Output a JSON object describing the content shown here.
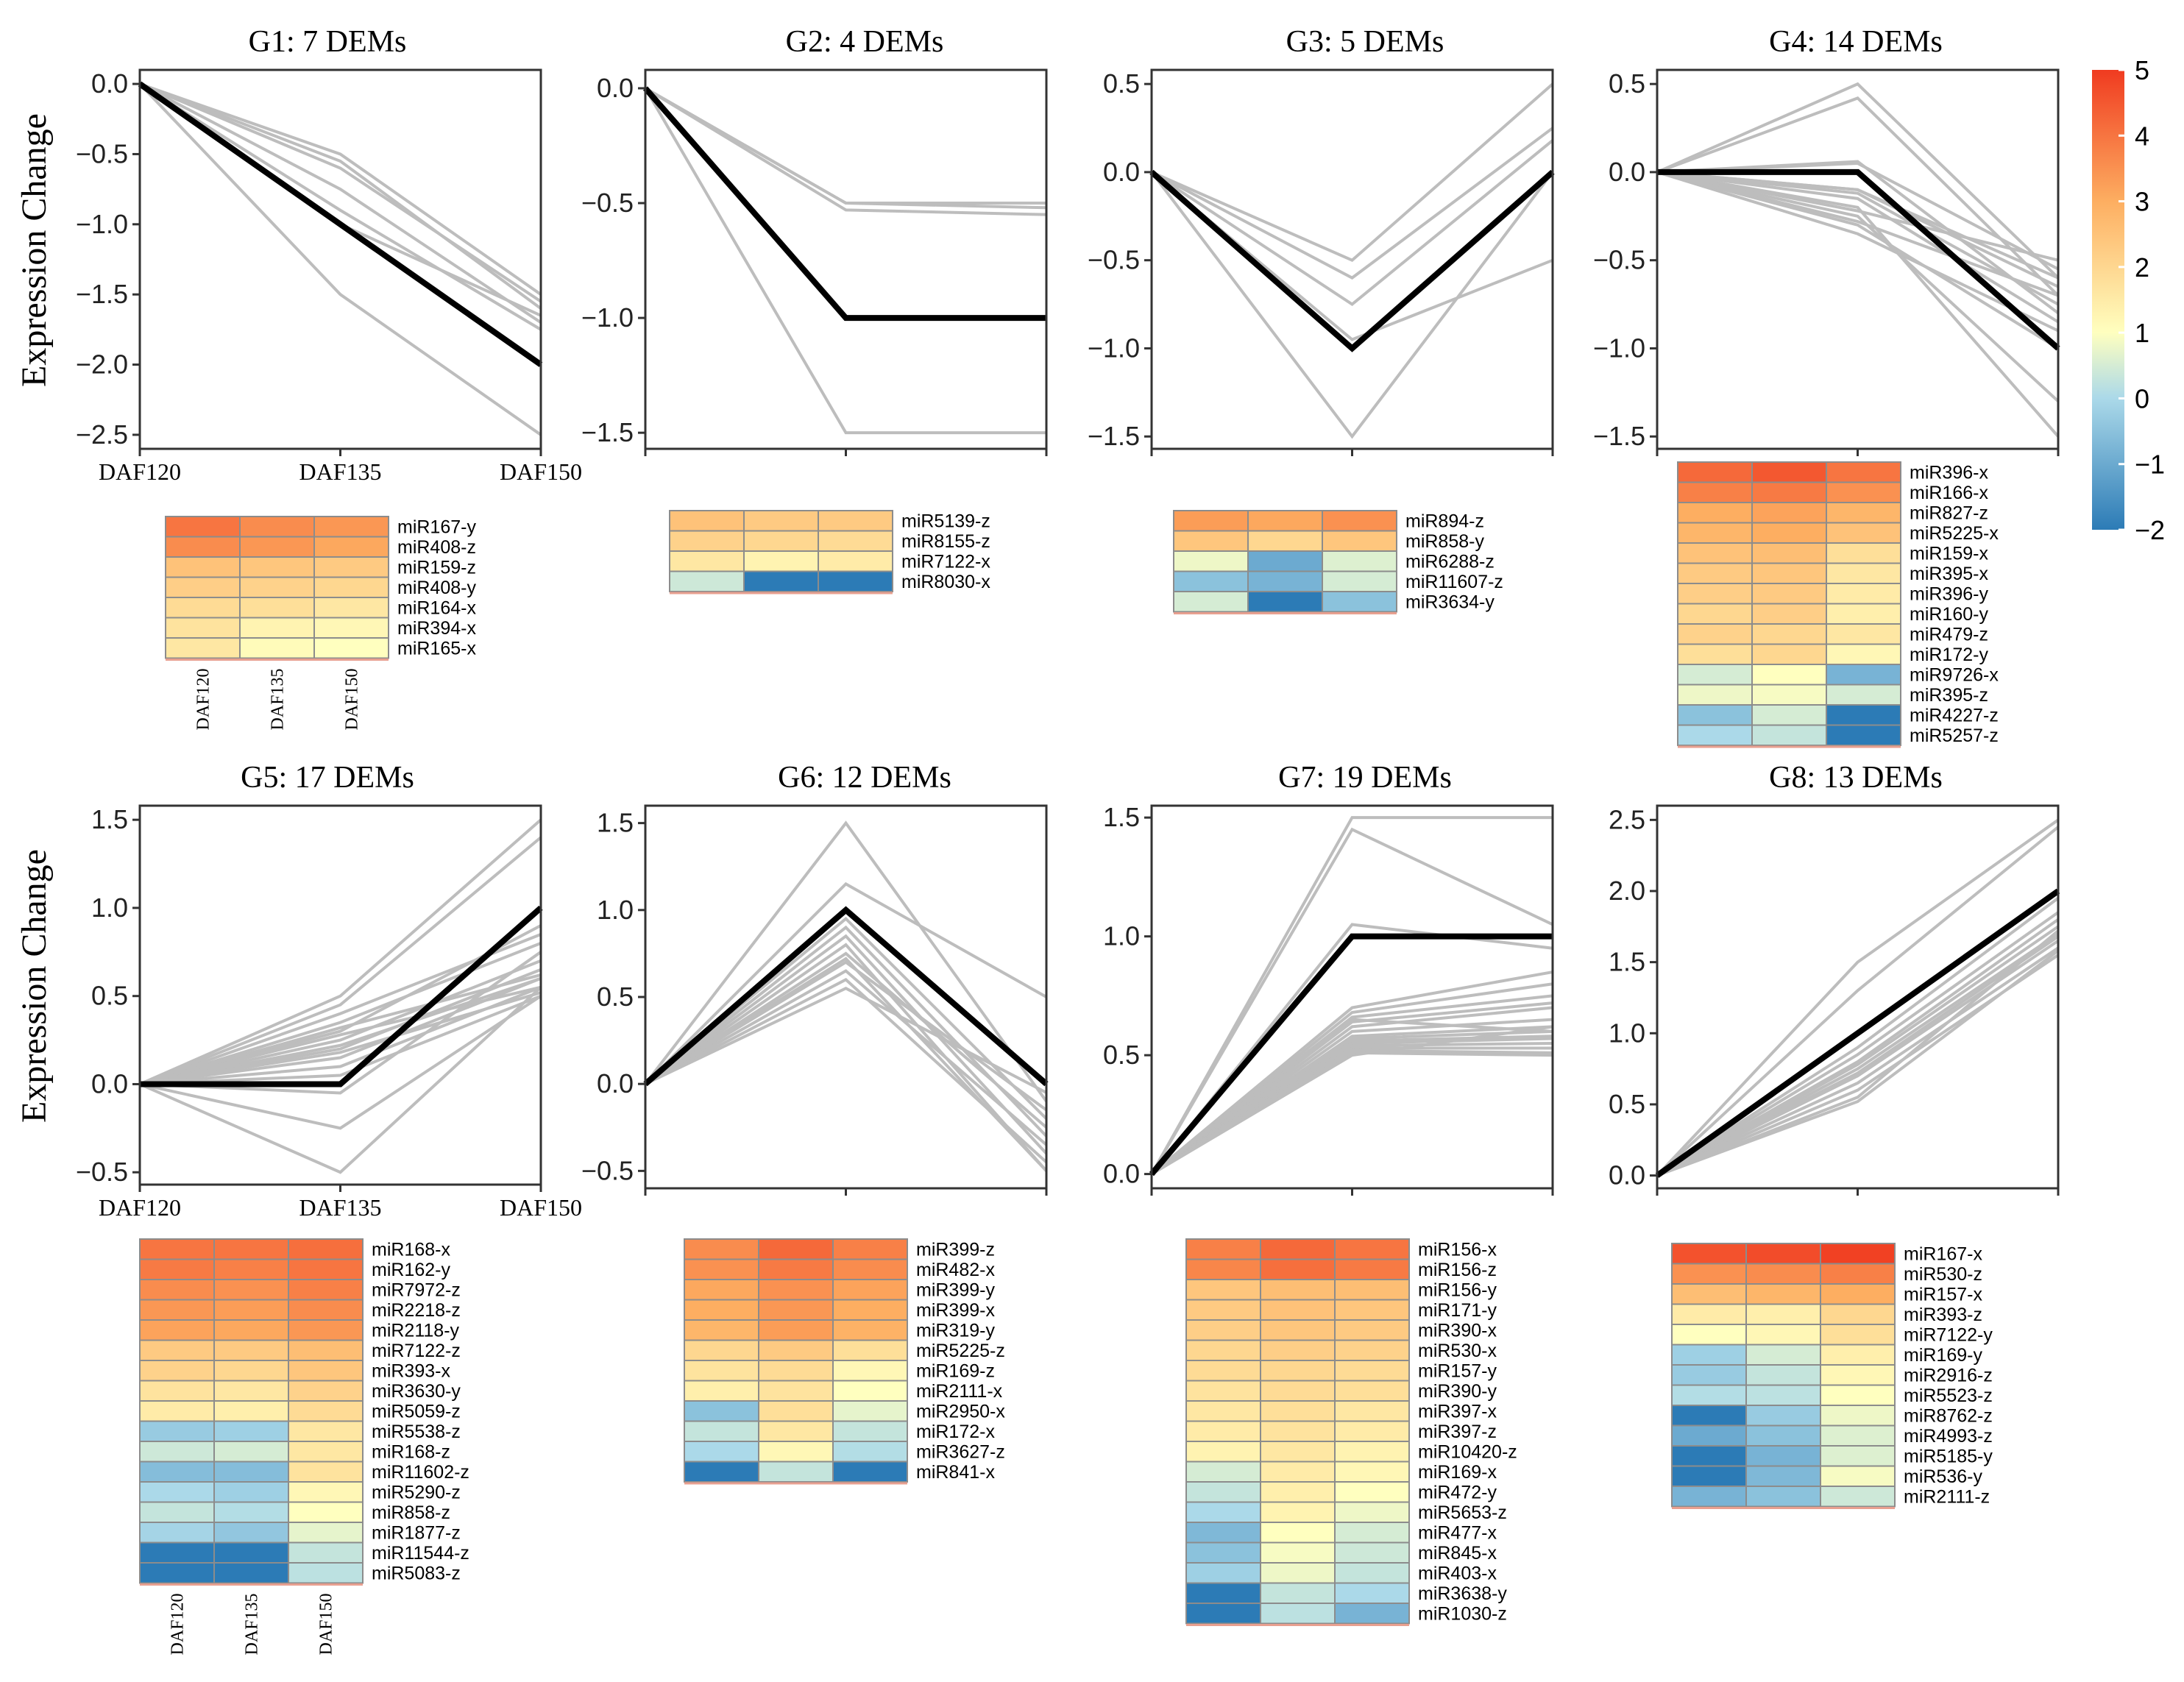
{
  "ylabel": "Expression Change",
  "colorbar": {
    "min": -2,
    "max": 5,
    "ticks": [
      5,
      4,
      3,
      2,
      1,
      0,
      -1,
      -2
    ],
    "tick_labels": [
      "5",
      "4",
      "3",
      "2",
      "1",
      "0",
      "−1",
      "−2"
    ],
    "colors": [
      "#2c7bb6",
      "#abd9e9",
      "#ffffbf",
      "#fdae61",
      "#f03b20"
    ]
  },
  "x_labels": [
    "DAF120",
    "DAF135",
    "DAF150"
  ],
  "chart_data": [
    {
      "type": "line",
      "title": "G1: 7 DEMs",
      "ylim": [
        -2.6,
        0.1
      ],
      "yticks": [
        0,
        -0.5,
        -1,
        -1.5,
        -2,
        -2.5
      ],
      "ytick_labels": [
        "0.0",
        "−0.5",
        "−1.0",
        "−1.5",
        "−2.0",
        "−2.5"
      ],
      "show_ylabel": true,
      "show_xlabels": true,
      "profile": [
        0,
        -1,
        -2
      ],
      "members": [
        [
          0,
          -0.5,
          -1.5
        ],
        [
          0,
          -0.55,
          -1.6
        ],
        [
          0,
          -0.75,
          -1.7
        ],
        [
          0,
          -0.6,
          -1.55
        ],
        [
          0,
          -1.5,
          -2.5
        ],
        [
          0,
          -0.9,
          -1.75
        ],
        [
          0,
          -1.0,
          -1.65
        ]
      ],
      "heatmap": {
        "genes": [
          "miR167-y",
          "miR408-z",
          "miR159-z",
          "miR408-y",
          "miR164-x",
          "miR394-x",
          "miR165-x"
        ],
        "values": [
          [
            4.0,
            3.6,
            3.4
          ],
          [
            3.6,
            3.4,
            3.1
          ],
          [
            2.5,
            2.4,
            2.3
          ],
          [
            2.2,
            2.1,
            2.0
          ],
          [
            1.9,
            1.8,
            1.6
          ],
          [
            1.7,
            1.3,
            1.2
          ],
          [
            1.6,
            1.1,
            1.0
          ]
        ],
        "col_labels": [
          "DAF120",
          "DAF135",
          "DAF150"
        ]
      }
    },
    {
      "type": "line",
      "title": "G2: 4 DEMs",
      "ylim": [
        -1.57,
        0.08
      ],
      "yticks": [
        0,
        -0.5,
        -1,
        -1.5
      ],
      "ytick_labels": [
        "0.0",
        "−0.5",
        "−1.0",
        "−1.5"
      ],
      "show_ylabel": false,
      "show_xlabels": false,
      "profile": [
        0,
        -1,
        -1
      ],
      "members": [
        [
          0,
          -0.5,
          -0.5
        ],
        [
          0,
          -0.53,
          -0.55
        ],
        [
          0,
          -0.5,
          -0.52
        ],
        [
          0,
          -1.5,
          -1.5
        ]
      ],
      "heatmap": {
        "genes": [
          "miR5139-z",
          "miR8155-z",
          "miR7122-x",
          "miR8030-x"
        ],
        "values": [
          [
            2.5,
            2.3,
            2.3
          ],
          [
            2.1,
            2.0,
            1.9
          ],
          [
            1.6,
            1.3,
            1.5
          ],
          [
            0.4,
            -2.0,
            -2.0
          ]
        ],
        "col_labels": []
      }
    },
    {
      "type": "line",
      "title": "G3: 5 DEMs",
      "ylim": [
        -1.57,
        0.58
      ],
      "yticks": [
        0.5,
        0,
        -0.5,
        -1,
        -1.5
      ],
      "ytick_labels": [
        "0.5",
        "0.0",
        "−0.5",
        "−1.0",
        "−1.5"
      ],
      "show_ylabel": false,
      "show_xlabels": false,
      "profile": [
        0,
        -1,
        0
      ],
      "members": [
        [
          0,
          -0.5,
          0.5
        ],
        [
          0,
          -0.6,
          0.25
        ],
        [
          0,
          -0.75,
          0.18
        ],
        [
          0,
          -0.95,
          -0.5
        ],
        [
          0,
          -1.5,
          0.0
        ]
      ],
      "heatmap": {
        "genes": [
          "miR894-z",
          "miR858-y",
          "miR6288-z",
          "miR11607-z",
          "miR3634-y"
        ],
        "values": [
          [
            3.3,
            3.1,
            3.5
          ],
          [
            2.4,
            2.0,
            2.4
          ],
          [
            0.8,
            -1.0,
            0.6
          ],
          [
            -0.5,
            -0.8,
            0.5
          ],
          [
            0.5,
            -2.0,
            -0.5
          ]
        ],
        "col_labels": []
      }
    },
    {
      "type": "line",
      "title": "G4: 14 DEMs",
      "ylim": [
        -1.57,
        0.58
      ],
      "yticks": [
        0.5,
        0,
        -0.5,
        -1,
        -1.5
      ],
      "ytick_labels": [
        "0.5",
        "0.0",
        "−0.5",
        "−1.0",
        "−1.5"
      ],
      "show_ylabel": false,
      "show_xlabels": false,
      "profile": [
        0,
        0,
        -1
      ],
      "members": [
        [
          0,
          0.5,
          -0.6
        ],
        [
          0,
          0.42,
          -0.7
        ],
        [
          0,
          0.05,
          -0.55
        ],
        [
          0,
          0.06,
          -0.8
        ],
        [
          0,
          -0.1,
          -0.65
        ],
        [
          0,
          -0.12,
          -0.75
        ],
        [
          0,
          -0.15,
          -0.85
        ],
        [
          0,
          -0.2,
          -1.5
        ],
        [
          0,
          -0.22,
          -0.5
        ],
        [
          0,
          -0.25,
          -1.3
        ],
        [
          0,
          -0.28,
          -0.7
        ],
        [
          0,
          -0.35,
          -0.9
        ],
        [
          0,
          -0.1,
          -0.6
        ],
        [
          0,
          -0.3,
          -1.0
        ]
      ],
      "heatmap": {
        "genes": [
          "miR396-x",
          "miR166-x",
          "miR827-z",
          "miR5225-x",
          "miR159-x",
          "miR395-x",
          "miR396-y",
          "miR160-y",
          "miR479-z",
          "miR172-y",
          "miR9726-x",
          "miR395-z",
          "miR4227-z",
          "miR5257-z"
        ],
        "values": [
          [
            4.2,
            4.5,
            4.0
          ],
          [
            3.8,
            3.9,
            3.5
          ],
          [
            3.0,
            3.2,
            2.8
          ],
          [
            2.8,
            3.0,
            2.5
          ],
          [
            2.5,
            2.6,
            1.8
          ],
          [
            2.3,
            2.4,
            1.6
          ],
          [
            2.2,
            2.3,
            1.5
          ],
          [
            2.0,
            2.2,
            1.4
          ],
          [
            2.1,
            2.0,
            1.6
          ],
          [
            1.8,
            2.0,
            1.2
          ],
          [
            0.5,
            1.0,
            -0.8
          ],
          [
            0.8,
            0.9,
            0.5
          ],
          [
            -0.5,
            0.5,
            -2.0
          ],
          [
            0.0,
            0.3,
            -2.0
          ]
        ],
        "col_labels": []
      }
    },
    {
      "type": "line",
      "title": "G5: 17 DEMs",
      "ylim": [
        -0.57,
        1.58
      ],
      "yticks": [
        1.5,
        1,
        0.5,
        0,
        -0.5
      ],
      "ytick_labels": [
        "1.5",
        "1.0",
        "0.5",
        "0.0",
        "−0.5"
      ],
      "show_ylabel": true,
      "show_xlabels": true,
      "profile": [
        0,
        0,
        1
      ],
      "members": [
        [
          0,
          0.5,
          1.5
        ],
        [
          0,
          0.45,
          1.4
        ],
        [
          0,
          0.3,
          0.9
        ],
        [
          0,
          0.35,
          0.8
        ],
        [
          0,
          0.25,
          0.7
        ],
        [
          0,
          0.2,
          0.65
        ],
        [
          0,
          0.15,
          0.6
        ],
        [
          0,
          0.1,
          0.55
        ],
        [
          0,
          0.28,
          0.55
        ],
        [
          0,
          0.22,
          0.6
        ],
        [
          0,
          0.05,
          0.5
        ],
        [
          0,
          -0.05,
          0.75
        ],
        [
          0,
          -0.25,
          0.5
        ],
        [
          0,
          -0.5,
          0.55
        ],
        [
          0,
          0.4,
          0.85
        ],
        [
          0,
          0.32,
          0.62
        ],
        [
          0,
          0.18,
          0.52
        ]
      ],
      "heatmap": {
        "genes": [
          "miR168-x",
          "miR162-y",
          "miR7972-z",
          "miR2218-z",
          "miR2118-y",
          "miR7122-z",
          "miR393-x",
          "miR3630-y",
          "miR5059-z",
          "miR5538-z",
          "miR168-z",
          "miR11602-z",
          "miR5290-z",
          "miR858-z",
          "miR1877-z",
          "miR11544-z",
          "miR5083-z"
        ],
        "values": [
          [
            4.0,
            4.0,
            4.1
          ],
          [
            3.9,
            3.8,
            4.0
          ],
          [
            3.6,
            3.5,
            3.8
          ],
          [
            3.4,
            3.3,
            3.6
          ],
          [
            3.2,
            3.1,
            3.4
          ],
          [
            2.3,
            2.3,
            2.6
          ],
          [
            2.1,
            2.0,
            2.4
          ],
          [
            1.7,
            1.6,
            2.1
          ],
          [
            1.5,
            1.4,
            1.9
          ],
          [
            -0.3,
            -0.2,
            1.6
          ],
          [
            0.4,
            0.5,
            1.6
          ],
          [
            -0.6,
            -0.6,
            1.7
          ],
          [
            0.0,
            -0.2,
            1.2
          ],
          [
            0.3,
            0.1,
            1.0
          ],
          [
            -0.1,
            -0.4,
            0.7
          ],
          [
            -2.0,
            -2.0,
            0.3
          ],
          [
            -2.0,
            -2.0,
            0.2
          ]
        ],
        "col_labels": [
          "DAF120",
          "DAF135",
          "DAF150"
        ]
      }
    },
    {
      "type": "line",
      "title": "G6: 12 DEMs",
      "ylim": [
        -0.6,
        1.6
      ],
      "yticks": [
        1.5,
        1,
        0.5,
        0,
        -0.5
      ],
      "ytick_labels": [
        "1.5",
        "1.0",
        "0.5",
        "0.0",
        "−0.5"
      ],
      "show_ylabel": false,
      "show_xlabels": false,
      "profile": [
        0,
        1,
        0
      ],
      "members": [
        [
          0,
          1.5,
          -0.1
        ],
        [
          0,
          1.15,
          0.5
        ],
        [
          0,
          0.95,
          -0.2
        ],
        [
          0,
          0.9,
          -0.3
        ],
        [
          0,
          0.85,
          -0.4
        ],
        [
          0,
          0.8,
          -0.5
        ],
        [
          0,
          0.75,
          -0.25
        ],
        [
          0,
          0.7,
          -0.15
        ],
        [
          0,
          0.65,
          -0.35
        ],
        [
          0,
          0.6,
          -0.45
        ],
        [
          0,
          0.55,
          -0.05
        ],
        [
          0,
          0.72,
          -0.5
        ]
      ],
      "heatmap": {
        "genes": [
          "miR399-z",
          "miR482-x",
          "miR399-y",
          "miR399-x",
          "miR319-y",
          "miR5225-z",
          "miR169-z",
          "miR2111-x",
          "miR2950-x",
          "miR172-x",
          "miR3627-z",
          "miR841-x"
        ],
        "values": [
          [
            3.6,
            4.2,
            3.8
          ],
          [
            3.5,
            3.9,
            3.6
          ],
          [
            3.1,
            3.5,
            3.2
          ],
          [
            3.0,
            3.4,
            3.0
          ],
          [
            2.8,
            3.3,
            2.9
          ],
          [
            2.0,
            2.3,
            1.8
          ],
          [
            1.7,
            1.9,
            1.2
          ],
          [
            1.4,
            1.7,
            1.0
          ],
          [
            -0.5,
            1.8,
            0.7
          ],
          [
            0.3,
            1.6,
            0.3
          ],
          [
            0.0,
            1.2,
            0.1
          ],
          [
            -2.0,
            0.3,
            -2.0
          ]
        ],
        "col_labels": []
      }
    },
    {
      "type": "line",
      "title": "G7: 19 DEMs",
      "ylim": [
        -0.06,
        1.55
      ],
      "yticks": [
        1.5,
        1,
        0.5,
        0
      ],
      "ytick_labels": [
        "1.5",
        "1.0",
        "0.5",
        "0.0"
      ],
      "show_ylabel": false,
      "show_xlabels": false,
      "profile": [
        0,
        1,
        1
      ],
      "members": [
        [
          0,
          1.5,
          1.5
        ],
        [
          0,
          1.45,
          1.05
        ],
        [
          0,
          1.05,
          0.95
        ],
        [
          0,
          0.7,
          0.85
        ],
        [
          0,
          0.68,
          0.8
        ],
        [
          0,
          0.66,
          0.75
        ],
        [
          0,
          0.64,
          0.72
        ],
        [
          0,
          0.62,
          0.7
        ],
        [
          0,
          0.6,
          0.65
        ],
        [
          0,
          0.58,
          0.62
        ],
        [
          0,
          0.57,
          0.6
        ],
        [
          0,
          0.56,
          0.58
        ],
        [
          0,
          0.55,
          0.57
        ],
        [
          0,
          0.54,
          0.55
        ],
        [
          0,
          0.53,
          0.53
        ],
        [
          0,
          0.52,
          0.51
        ],
        [
          0,
          0.51,
          0.5
        ],
        [
          0,
          0.5,
          0.62
        ],
        [
          0,
          0.65,
          0.6
        ]
      ],
      "heatmap": {
        "genes": [
          "miR156-x",
          "miR156-z",
          "miR156-y",
          "miR171-y",
          "miR390-x",
          "miR530-x",
          "miR157-y",
          "miR390-y",
          "miR397-x",
          "miR397-z",
          "miR10420-z",
          "miR169-x",
          "miR472-y",
          "miR5653-z",
          "miR477-x",
          "miR845-x",
          "miR403-x",
          "miR3638-y",
          "miR1030-z"
        ],
        "values": [
          [
            3.8,
            4.2,
            4.0
          ],
          [
            3.7,
            4.1,
            3.9
          ],
          [
            2.4,
            2.6,
            2.6
          ],
          [
            2.3,
            2.5,
            2.4
          ],
          [
            2.2,
            2.4,
            2.3
          ],
          [
            2.0,
            2.2,
            2.1
          ],
          [
            1.9,
            2.0,
            1.9
          ],
          [
            1.7,
            1.9,
            1.8
          ],
          [
            1.6,
            1.8,
            1.6
          ],
          [
            1.5,
            1.7,
            1.5
          ],
          [
            1.3,
            1.6,
            1.3
          ],
          [
            0.5,
            1.5,
            1.2
          ],
          [
            0.3,
            1.4,
            1.0
          ],
          [
            0.0,
            1.3,
            0.8
          ],
          [
            -0.7,
            1.0,
            0.5
          ],
          [
            -0.5,
            0.9,
            0.4
          ],
          [
            -0.2,
            0.8,
            0.3
          ],
          [
            -2.0,
            0.3,
            0.0
          ],
          [
            -2.0,
            0.2,
            -0.8
          ]
        ],
        "col_labels": []
      }
    },
    {
      "type": "line",
      "title": "G8: 13 DEMs",
      "ylim": [
        -0.09,
        2.6
      ],
      "yticks": [
        2.5,
        2,
        1.5,
        1,
        0.5,
        0
      ],
      "ytick_labels": [
        "2.5",
        "2.0",
        "1.5",
        "1.0",
        "0.5",
        "0.0"
      ],
      "show_ylabel": false,
      "show_xlabels": false,
      "profile": [
        0,
        1,
        2
      ],
      "members": [
        [
          0,
          1.5,
          2.5
        ],
        [
          0,
          1.3,
          2.45
        ],
        [
          0,
          0.9,
          1.95
        ],
        [
          0,
          0.85,
          1.85
        ],
        [
          0,
          0.8,
          1.8
        ],
        [
          0,
          0.78,
          1.75
        ],
        [
          0,
          0.75,
          1.7
        ],
        [
          0,
          0.72,
          1.68
        ],
        [
          0,
          0.7,
          1.65
        ],
        [
          0,
          0.65,
          1.6
        ],
        [
          0,
          0.6,
          1.55
        ],
        [
          0,
          0.55,
          1.72
        ],
        [
          0,
          0.52,
          1.58
        ]
      ],
      "heatmap": {
        "genes": [
          "miR167-x",
          "miR530-z",
          "miR157-x",
          "miR393-z",
          "miR7122-y",
          "miR169-y",
          "miR2916-z",
          "miR5523-z",
          "miR8762-z",
          "miR4993-z",
          "miR5185-y",
          "miR536-y",
          "miR2111-z"
        ],
        "values": [
          [
            4.6,
            4.7,
            4.9
          ],
          [
            3.5,
            3.6,
            3.8
          ],
          [
            2.6,
            2.8,
            3.0
          ],
          [
            1.5,
            1.4,
            2.0
          ],
          [
            1.0,
            1.2,
            1.8
          ],
          [
            -0.2,
            0.5,
            1.4
          ],
          [
            -0.3,
            0.3,
            1.2
          ],
          [
            0.1,
            0.2,
            1.0
          ],
          [
            -2.0,
            -0.3,
            0.8
          ],
          [
            -1.0,
            -0.5,
            0.6
          ],
          [
            -2.0,
            -0.8,
            0.6
          ],
          [
            -2.0,
            -0.7,
            0.9
          ],
          [
            -0.8,
            -0.5,
            0.4
          ]
        ],
        "col_labels": []
      }
    }
  ]
}
